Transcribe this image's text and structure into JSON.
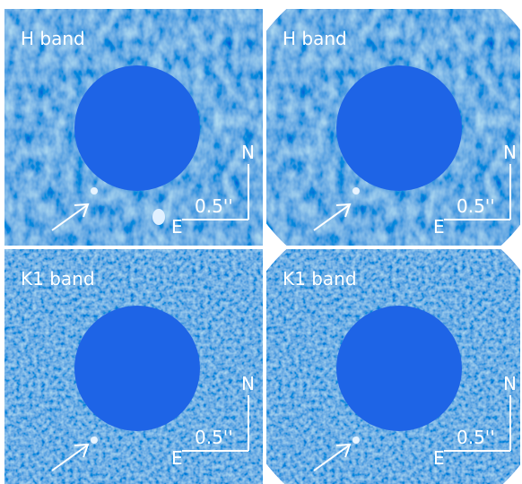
{
  "panels": [
    {
      "label": "H band",
      "north": "N",
      "east": "E",
      "scale": "0.5''"
    },
    {
      "label": "H band",
      "north": "N",
      "east": "E",
      "scale": "0.5''"
    },
    {
      "label": "K1 band",
      "north": "N",
      "east": "E",
      "scale": "0.5''"
    },
    {
      "label": "K1 band",
      "north": "N",
      "east": "E",
      "scale": "0.5''"
    }
  ]
}
